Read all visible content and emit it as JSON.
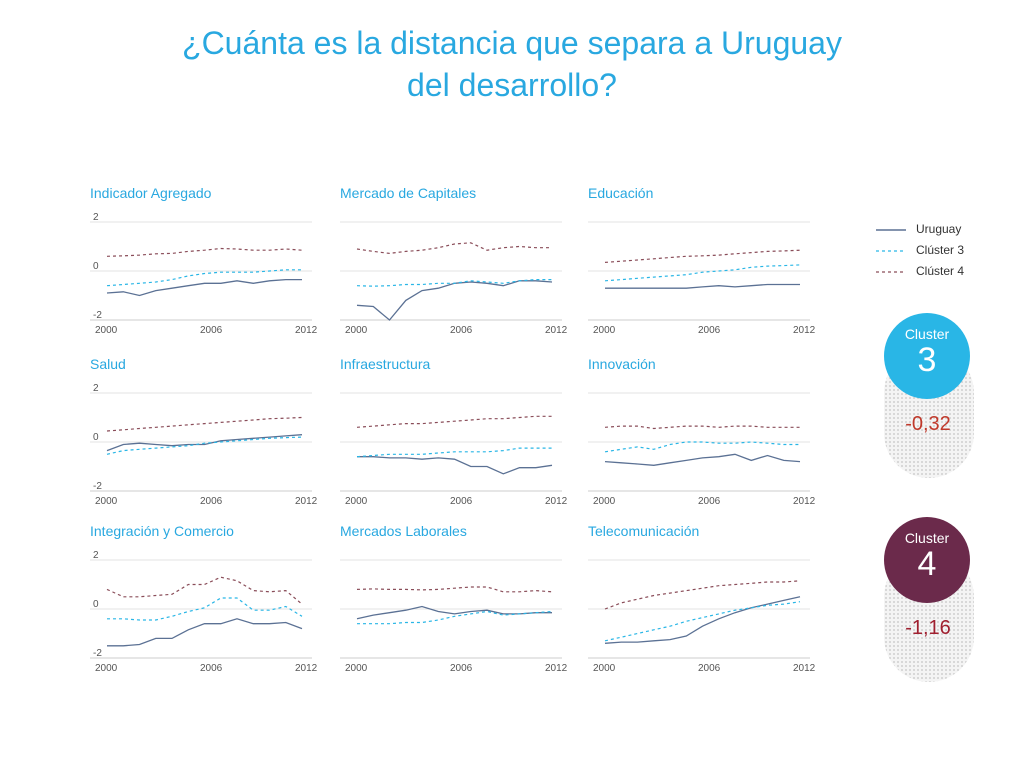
{
  "title_line1": "¿Cuánta es la distancia que separa a Uruguay",
  "title_line2": "del desarrollo?",
  "colors": {
    "title": "#29a8e0",
    "uruguay": "#5b7194",
    "cluster3": "#29b6e6",
    "cluster4": "#8a4d59",
    "cluster3_circle": "#29b6e6",
    "cluster4_circle": "#6b2a4b",
    "cluster3_value": "#c0392b",
    "cluster4_value": "#a02030"
  },
  "legend": {
    "uruguay": "Uruguay",
    "cluster3": "Clúster 3",
    "cluster4": "Clúster 4"
  },
  "cluster3": {
    "label": "Cluster",
    "number": "3",
    "value": "-0,32"
  },
  "cluster4": {
    "label": "Cluster",
    "number": "4",
    "value": "-1,16"
  },
  "chart_data": [
    {
      "type": "line",
      "title": "Indicador Agregado",
      "x": [
        2000,
        2001,
        2002,
        2003,
        2004,
        2005,
        2006,
        2007,
        2008,
        2009,
        2010,
        2011,
        2012
      ],
      "xticks": [
        "2000",
        "2006",
        "2012"
      ],
      "yticks": [
        "2",
        "0",
        "-2"
      ],
      "ylim": [
        -2,
        2
      ],
      "series": [
        {
          "name": "Uruguay",
          "values": [
            -0.9,
            -0.85,
            -1.0,
            -0.8,
            -0.7,
            -0.6,
            -0.5,
            -0.5,
            -0.4,
            -0.5,
            -0.4,
            -0.35,
            -0.35
          ]
        },
        {
          "name": "Clúster 3",
          "values": [
            -0.6,
            -0.55,
            -0.5,
            -0.45,
            -0.35,
            -0.2,
            -0.1,
            -0.05,
            -0.05,
            -0.05,
            0.0,
            0.05,
            0.05
          ]
        },
        {
          "name": "Clúster 4",
          "values": [
            0.6,
            0.62,
            0.65,
            0.7,
            0.72,
            0.8,
            0.85,
            0.92,
            0.9,
            0.85,
            0.85,
            0.9,
            0.85
          ]
        }
      ]
    },
    {
      "type": "line",
      "title": "Mercado de Capitales",
      "x": [
        2000,
        2001,
        2002,
        2003,
        2004,
        2005,
        2006,
        2007,
        2008,
        2009,
        2010,
        2011,
        2012
      ],
      "xticks": [
        "2000",
        "2006",
        "2012"
      ],
      "yticks": [],
      "ylim": [
        -2,
        2
      ],
      "series": [
        {
          "name": "Uruguay",
          "values": [
            -1.4,
            -1.45,
            -2.2,
            -1.2,
            -0.8,
            -0.7,
            -0.5,
            -0.45,
            -0.5,
            -0.6,
            -0.4,
            -0.4,
            -0.45
          ]
        },
        {
          "name": "Clúster 3",
          "values": [
            -0.6,
            -0.62,
            -0.6,
            -0.55,
            -0.55,
            -0.5,
            -0.5,
            -0.4,
            -0.45,
            -0.5,
            -0.4,
            -0.35,
            -0.35
          ]
        },
        {
          "name": "Clúster 4",
          "values": [
            0.9,
            0.8,
            0.72,
            0.8,
            0.85,
            0.95,
            1.1,
            1.15,
            0.85,
            0.95,
            1.0,
            0.95,
            0.95
          ]
        }
      ]
    },
    {
      "type": "line",
      "title": "Educación",
      "x": [
        2000,
        2001,
        2002,
        2003,
        2004,
        2005,
        2006,
        2007,
        2008,
        2009,
        2010,
        2011,
        2012
      ],
      "xticks": [
        "2000",
        "2006",
        "2012"
      ],
      "yticks": [],
      "ylim": [
        -2,
        2
      ],
      "series": [
        {
          "name": "Uruguay",
          "values": [
            -0.7,
            -0.7,
            -0.7,
            -0.7,
            -0.7,
            -0.7,
            -0.65,
            -0.6,
            -0.65,
            -0.6,
            -0.55,
            -0.55,
            -0.55
          ]
        },
        {
          "name": "Clúster 3",
          "values": [
            -0.4,
            -0.35,
            -0.3,
            -0.25,
            -0.2,
            -0.15,
            -0.05,
            0.0,
            0.05,
            0.15,
            0.2,
            0.22,
            0.25
          ]
        },
        {
          "name": "Clúster 4",
          "values": [
            0.35,
            0.4,
            0.45,
            0.5,
            0.55,
            0.6,
            0.62,
            0.65,
            0.7,
            0.75,
            0.8,
            0.82,
            0.85
          ]
        }
      ]
    },
    {
      "type": "line",
      "title": "Salud",
      "x": [
        2000,
        2001,
        2002,
        2003,
        2004,
        2005,
        2006,
        2007,
        2008,
        2009,
        2010,
        2011,
        2012
      ],
      "xticks": [
        "2000",
        "2006",
        "2012"
      ],
      "yticks": [
        "2",
        "0",
        "-2"
      ],
      "ylim": [
        -2,
        2
      ],
      "series": [
        {
          "name": "Uruguay",
          "values": [
            -0.35,
            -0.1,
            -0.05,
            -0.1,
            -0.15,
            -0.1,
            -0.1,
            0.05,
            0.1,
            0.15,
            0.2,
            0.25,
            0.3
          ]
        },
        {
          "name": "Clúster 3",
          "values": [
            -0.5,
            -0.35,
            -0.3,
            -0.25,
            -0.2,
            -0.15,
            -0.05,
            0.0,
            0.05,
            0.1,
            0.15,
            0.18,
            0.2
          ]
        },
        {
          "name": "Clúster 4",
          "values": [
            0.45,
            0.5,
            0.55,
            0.6,
            0.65,
            0.7,
            0.75,
            0.8,
            0.85,
            0.9,
            0.95,
            0.97,
            1.0
          ]
        }
      ]
    },
    {
      "type": "line",
      "title": "Infraestructura",
      "x": [
        2000,
        2001,
        2002,
        2003,
        2004,
        2005,
        2006,
        2007,
        2008,
        2009,
        2010,
        2011,
        2012
      ],
      "xticks": [
        "2000",
        "2006",
        "2012"
      ],
      "yticks": [],
      "ylim": [
        -2,
        2
      ],
      "series": [
        {
          "name": "Uruguay",
          "values": [
            -0.6,
            -0.6,
            -0.65,
            -0.65,
            -0.7,
            -0.65,
            -0.7,
            -1.0,
            -1.0,
            -1.3,
            -1.05,
            -1.05,
            -0.95
          ]
        },
        {
          "name": "Clúster 3",
          "values": [
            -0.6,
            -0.55,
            -0.5,
            -0.5,
            -0.5,
            -0.45,
            -0.4,
            -0.4,
            -0.4,
            -0.35,
            -0.25,
            -0.25,
            -0.25
          ]
        },
        {
          "name": "Clúster 4",
          "values": [
            0.6,
            0.65,
            0.7,
            0.75,
            0.75,
            0.8,
            0.85,
            0.9,
            0.95,
            0.95,
            1.0,
            1.05,
            1.05
          ]
        }
      ]
    },
    {
      "type": "line",
      "title": "Innovación",
      "x": [
        2000,
        2001,
        2002,
        2003,
        2004,
        2005,
        2006,
        2007,
        2008,
        2009,
        2010,
        2011,
        2012
      ],
      "xticks": [
        "2000",
        "2006",
        "2012"
      ],
      "yticks": [],
      "ylim": [
        -2,
        2
      ],
      "series": [
        {
          "name": "Uruguay",
          "values": [
            -0.8,
            -0.85,
            -0.9,
            -0.95,
            -0.85,
            -0.75,
            -0.65,
            -0.6,
            -0.5,
            -0.75,
            -0.55,
            -0.75,
            -0.8
          ]
        },
        {
          "name": "Clúster 3",
          "values": [
            -0.4,
            -0.3,
            -0.2,
            -0.3,
            -0.1,
            0.0,
            0.0,
            -0.05,
            -0.05,
            0.0,
            -0.05,
            -0.1,
            -0.1
          ]
        },
        {
          "name": "Clúster 4",
          "values": [
            0.6,
            0.65,
            0.65,
            0.55,
            0.6,
            0.65,
            0.65,
            0.6,
            0.65,
            0.65,
            0.6,
            0.6,
            0.6
          ]
        }
      ]
    },
    {
      "type": "line",
      "title": "Integración y Comercio",
      "x": [
        2000,
        2001,
        2002,
        2003,
        2004,
        2005,
        2006,
        2007,
        2008,
        2009,
        2010,
        2011,
        2012
      ],
      "xticks": [
        "2000",
        "2006",
        "2012"
      ],
      "yticks": [
        "2",
        "0",
        "-2"
      ],
      "ylim": [
        -2,
        2
      ],
      "series": [
        {
          "name": "Uruguay",
          "values": [
            -1.5,
            -1.5,
            -1.45,
            -1.2,
            -1.2,
            -0.85,
            -0.6,
            -0.6,
            -0.4,
            -0.6,
            -0.6,
            -0.55,
            -0.8
          ]
        },
        {
          "name": "Clúster 3",
          "values": [
            -0.4,
            -0.4,
            -0.45,
            -0.45,
            -0.3,
            -0.1,
            0.05,
            0.45,
            0.45,
            -0.05,
            -0.05,
            0.1,
            -0.3
          ]
        },
        {
          "name": "Clúster 4",
          "values": [
            0.8,
            0.5,
            0.5,
            0.55,
            0.6,
            1.0,
            1.0,
            1.3,
            1.15,
            0.75,
            0.7,
            0.75,
            0.2
          ]
        }
      ]
    },
    {
      "type": "line",
      "title": "Mercados Laborales",
      "x": [
        2000,
        2001,
        2002,
        2003,
        2004,
        2005,
        2006,
        2007,
        2008,
        2009,
        2010,
        2011,
        2012
      ],
      "xticks": [
        "2000",
        "2006",
        "2012"
      ],
      "yticks": [],
      "ylim": [
        -2,
        2
      ],
      "series": [
        {
          "name": "Uruguay",
          "values": [
            -0.4,
            -0.25,
            -0.15,
            -0.05,
            0.1,
            -0.1,
            -0.2,
            -0.1,
            -0.05,
            -0.2,
            -0.2,
            -0.15,
            -0.15
          ]
        },
        {
          "name": "Clúster 3",
          "values": [
            -0.6,
            -0.6,
            -0.6,
            -0.55,
            -0.55,
            -0.45,
            -0.3,
            -0.2,
            -0.1,
            -0.25,
            -0.2,
            -0.15,
            -0.1
          ]
        },
        {
          "name": "Clúster 4",
          "values": [
            0.8,
            0.82,
            0.8,
            0.8,
            0.78,
            0.8,
            0.85,
            0.9,
            0.9,
            0.7,
            0.7,
            0.75,
            0.7
          ]
        }
      ]
    },
    {
      "type": "line",
      "title": "Telecomunicación",
      "x": [
        2000,
        2001,
        2002,
        2003,
        2004,
        2005,
        2006,
        2007,
        2008,
        2009,
        2010,
        2011,
        2012
      ],
      "xticks": [
        "2000",
        "2006",
        "2012"
      ],
      "yticks": [],
      "ylim": [
        -2,
        2
      ],
      "series": [
        {
          "name": "Uruguay",
          "values": [
            -1.4,
            -1.35,
            -1.35,
            -1.3,
            -1.25,
            -1.1,
            -0.7,
            -0.4,
            -0.15,
            0.05,
            0.2,
            0.35,
            0.5
          ]
        },
        {
          "name": "Clúster 3",
          "values": [
            -1.3,
            -1.15,
            -1.0,
            -0.85,
            -0.7,
            -0.5,
            -0.35,
            -0.2,
            -0.05,
            0.05,
            0.15,
            0.2,
            0.3
          ]
        },
        {
          "name": "Clúster 4",
          "values": [
            0.0,
            0.25,
            0.4,
            0.55,
            0.65,
            0.75,
            0.85,
            0.95,
            1.0,
            1.05,
            1.1,
            1.1,
            1.15
          ]
        }
      ]
    }
  ]
}
